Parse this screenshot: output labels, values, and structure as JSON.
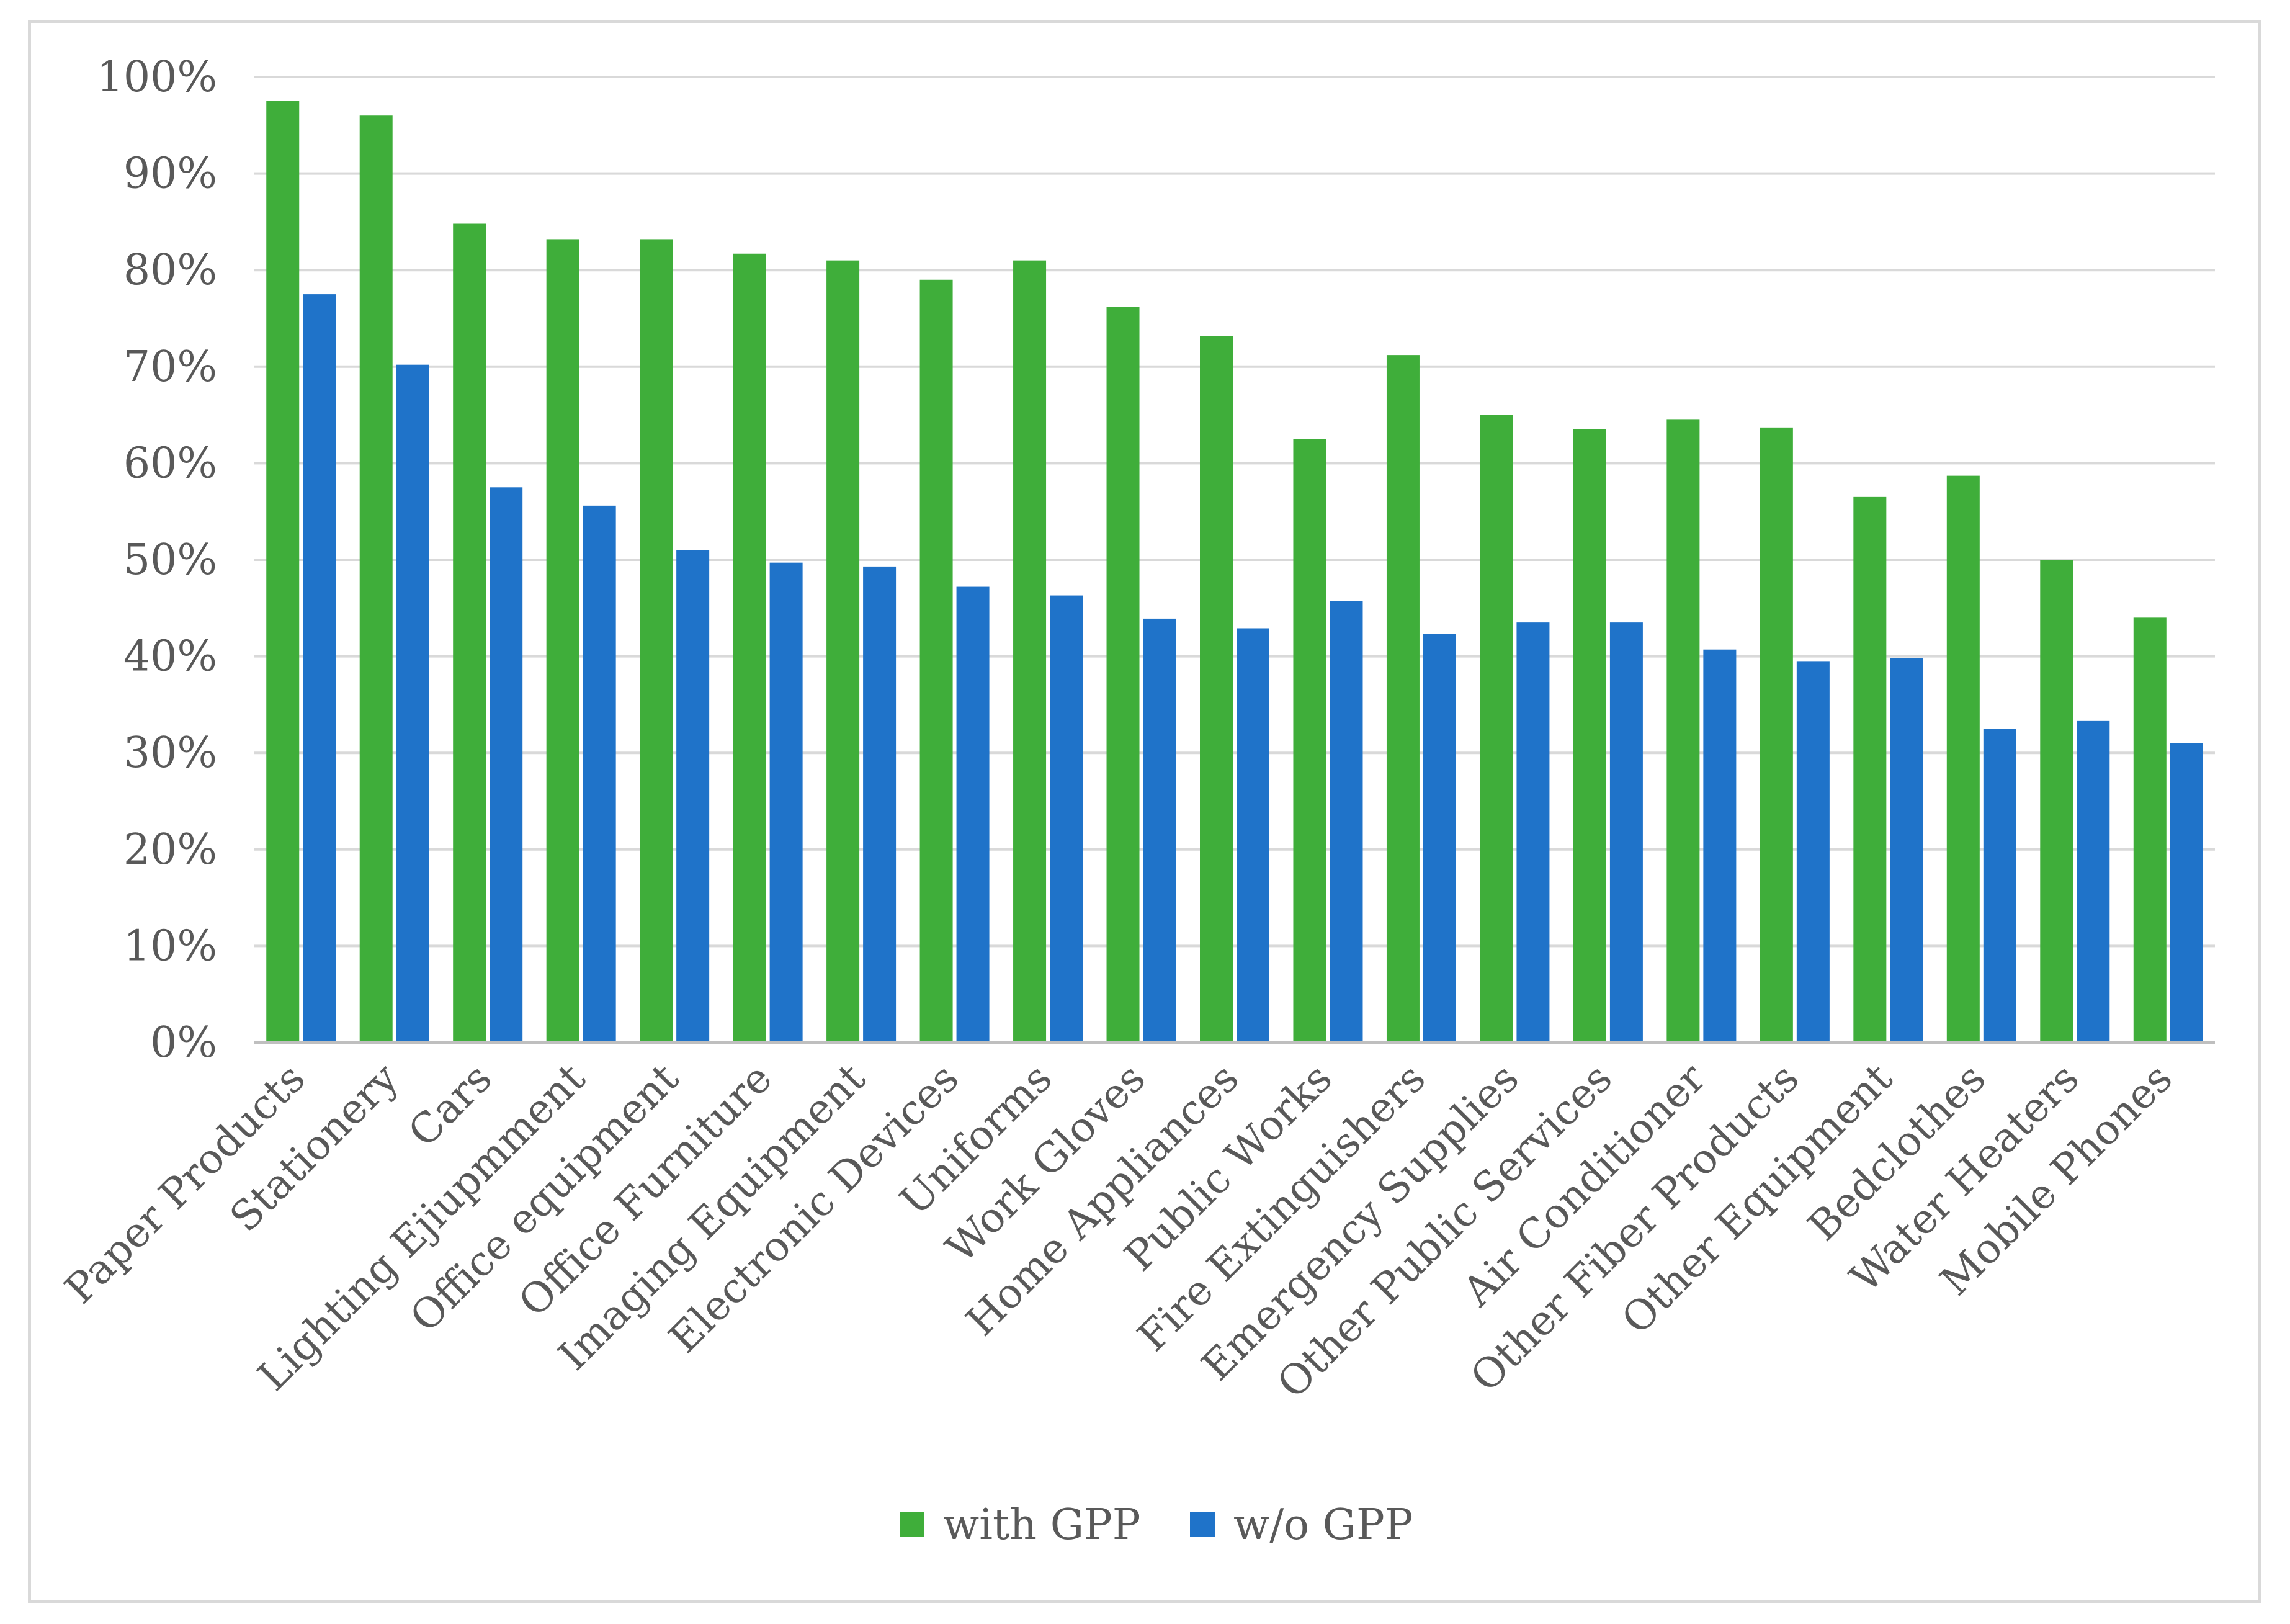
{
  "chart_data": {
    "type": "bar",
    "title": "",
    "xlabel": "",
    "ylabel": "",
    "ylim": [
      0,
      100
    ],
    "y_tick_format": "percent",
    "y_ticks": [
      "0%",
      "10%",
      "20%",
      "30%",
      "40%",
      "50%",
      "60%",
      "70%",
      "80%",
      "90%",
      "100%"
    ],
    "grid": "horizontal",
    "legend_position": "bottom",
    "categories": [
      "Paper Products",
      "Stationery",
      "Cars",
      "Lighting Ejiupmment",
      "Office equipment",
      "Office Furniture",
      "Imaging Equipment",
      "Electronic Devices",
      "Uniforms",
      "Work Gloves",
      "Home Appliances",
      "Public Works",
      "Fire Extinguishers",
      "Emergency Supplies",
      "Other Public Services",
      "Air Conditioner",
      "Other Fiber Products",
      "Other Equipment",
      "Bedclothes",
      "Water Heaters",
      "Mobile Phones"
    ],
    "series": [
      {
        "name": "with GPP",
        "color": "#3fae3a",
        "values": [
          97.5,
          96,
          84.8,
          83.2,
          83.2,
          81.7,
          81,
          79,
          81,
          76.2,
          73.2,
          62.5,
          71.2,
          65,
          63.5,
          64.5,
          63.7,
          56.5,
          58.7,
          50,
          44
        ]
      },
      {
        "name": "w/o GPP",
        "color": "#1f73c9",
        "values": [
          77.5,
          70.2,
          57.5,
          55.6,
          51,
          49.7,
          49.3,
          47.2,
          46.3,
          43.9,
          42.9,
          45.7,
          42.3,
          43.5,
          43.5,
          40.7,
          39.5,
          39.8,
          32.5,
          33.3,
          31
        ]
      }
    ]
  },
  "colors": {
    "grid": "#d9d9d9",
    "axis": "#bfbfbf",
    "text": "#595959"
  }
}
